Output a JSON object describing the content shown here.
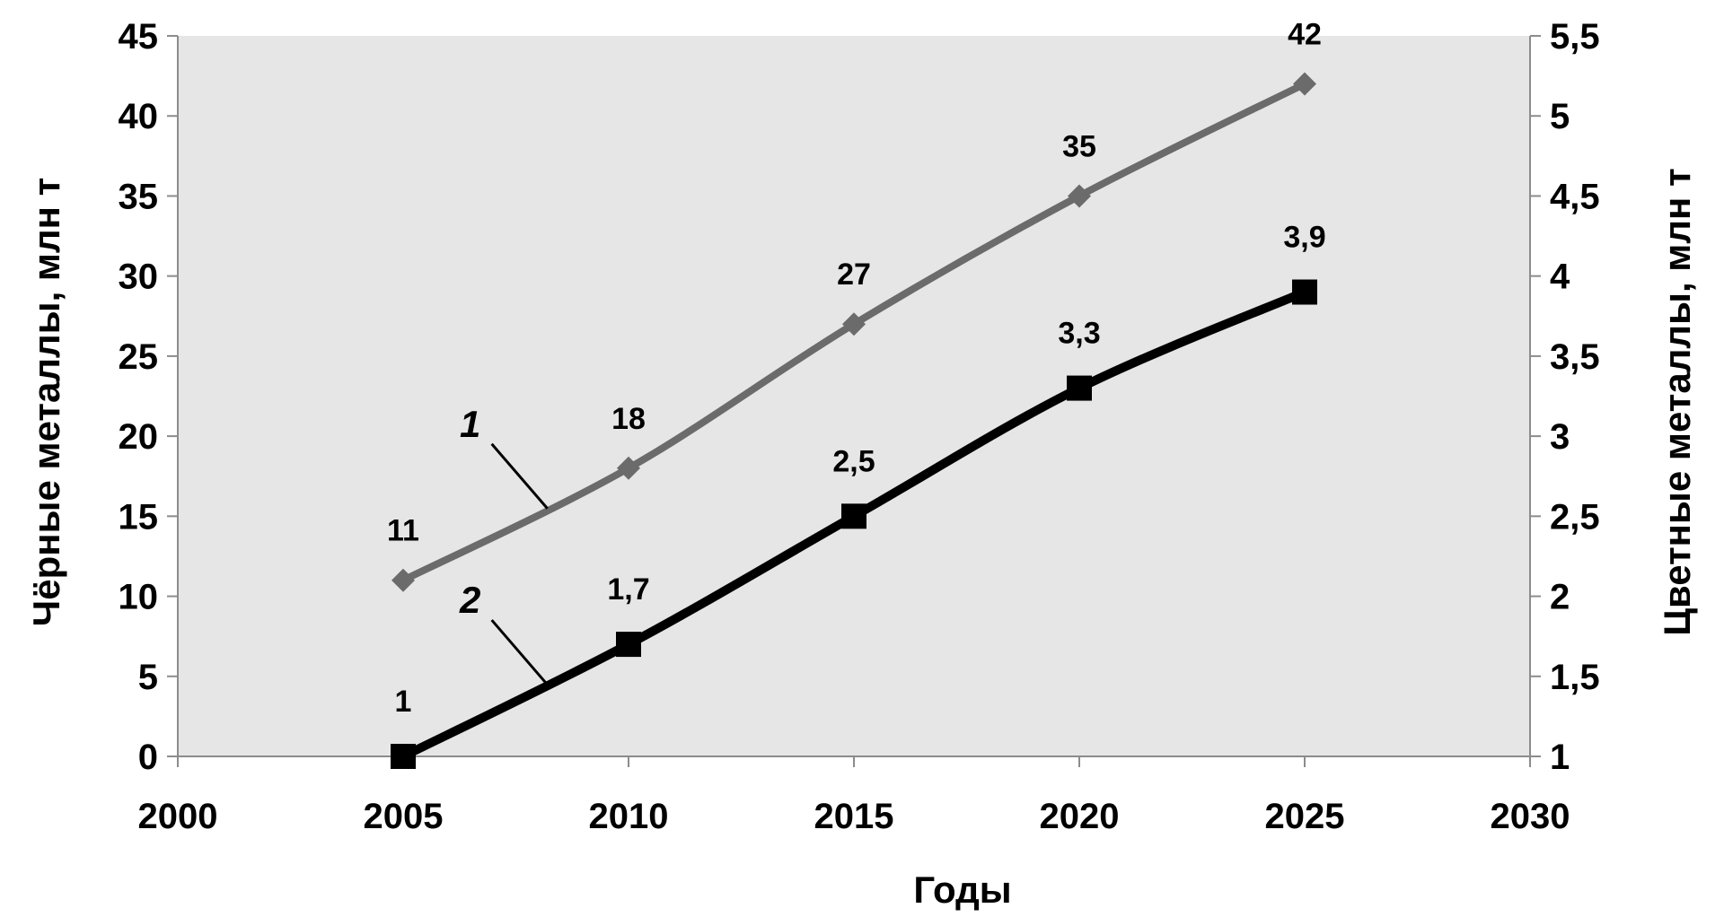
{
  "chart_data": {
    "type": "line",
    "title": "",
    "xlabel": "Годы",
    "ylabel": "Чёрные металлы, млн т",
    "y2label": "Цветные металлы, млн т",
    "xlim": [
      2000,
      2030
    ],
    "x_ticks": [
      "2000",
      "2005",
      "2010",
      "2015",
      "2020",
      "2025",
      "2030"
    ],
    "ylim": [
      0,
      45
    ],
    "y_ticks": [
      "0",
      "5",
      "10",
      "15",
      "20",
      "25",
      "30",
      "35",
      "40",
      "45"
    ],
    "y2lim": [
      1,
      5.5
    ],
    "y2_ticks": [
      "1",
      "1,5",
      "2",
      "2,5",
      "3",
      "3,5",
      "4",
      "4,5",
      "5",
      "5,5"
    ],
    "grid": false,
    "legend": "none",
    "series": [
      {
        "tag": "1",
        "axis": "left",
        "color": "#6b6b6b",
        "marker": "diamond",
        "x": [
          2005,
          2010,
          2015,
          2020,
          2025
        ],
        "values": [
          11,
          18,
          27,
          35,
          42
        ],
        "labels": [
          "11",
          "18",
          "27",
          "35",
          "42"
        ]
      },
      {
        "tag": "2",
        "axis": "right",
        "color": "#000000",
        "marker": "square",
        "x": [
          2005,
          2010,
          2015,
          2020,
          2025
        ],
        "values": [
          1,
          1.7,
          2.5,
          3.3,
          3.9
        ],
        "labels": [
          "1",
          "1,7",
          "2,5",
          "3,3",
          "3,9"
        ]
      }
    ]
  }
}
